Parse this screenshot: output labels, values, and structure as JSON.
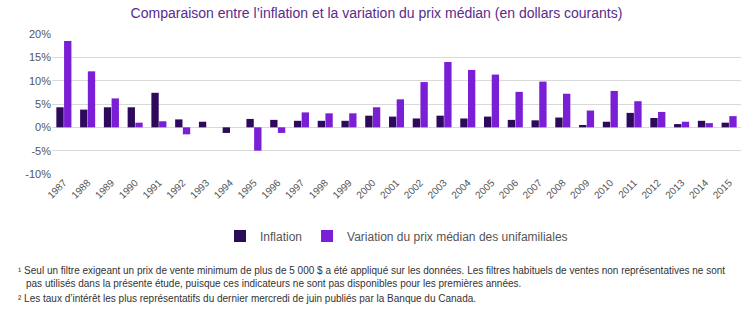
{
  "chart_data": {
    "type": "bar",
    "title": "Comparaison entre l’inflation et la variation du prix médian (en dollars courants)",
    "categories": [
      "1987",
      "1988",
      "1989",
      "1990",
      "1991",
      "1992",
      "1993",
      "1994",
      "1995",
      "1996",
      "1997",
      "1998",
      "1999",
      "2000",
      "2001",
      "2002",
      "2003",
      "2004",
      "2005",
      "2006",
      "2007",
      "2008",
      "2009",
      "2010",
      "2011",
      "2012",
      "2013",
      "2014",
      "2015"
    ],
    "series": [
      {
        "name": "Inflation",
        "color": "#2e0a5c",
        "values": [
          4.3,
          3.8,
          4.3,
          4.3,
          7.4,
          1.7,
          1.2,
          -1.2,
          1.8,
          1.6,
          1.4,
          1.4,
          1.4,
          2.5,
          2.3,
          1.9,
          2.5,
          1.9,
          2.3,
          1.6,
          1.5,
          2.1,
          0.5,
          1.2,
          3.1,
          2.0,
          0.7,
          1.4,
          1.0
        ]
      },
      {
        "name": "Variation du prix médian des unifamiliales",
        "color": "#7a1fd6",
        "values": [
          18.5,
          12.0,
          6.2,
          1.0,
          1.3,
          -1.5,
          0.0,
          0.0,
          -5.0,
          -1.2,
          3.2,
          3.0,
          3.0,
          4.3,
          6.0,
          9.7,
          14.0,
          12.3,
          11.3,
          7.6,
          9.8,
          7.2,
          3.6,
          7.8,
          5.6,
          3.3,
          1.2,
          0.9,
          2.4
        ]
      }
    ],
    "ylim": [
      -10,
      20
    ],
    "yticks": [
      {
        "value": -10,
        "label": "-10%"
      },
      {
        "value": -5,
        "label": "-5%"
      },
      {
        "value": 0,
        "label": "0%"
      },
      {
        "value": 5,
        "label": "5%"
      },
      {
        "value": 10,
        "label": "10%"
      },
      {
        "value": 15,
        "label": "15%"
      },
      {
        "value": 20,
        "label": "20%"
      }
    ],
    "grid": true,
    "legend": "bottom",
    "annotations": [
      "¹ Seul un filtre exigeant un prix de vente minimum de plus de 5 000 $ a été appliqué sur les données. Les filtres habituels de ventes non représentatives ne sont pas utilisés dans la présente étude, puisque ces indicateurs ne sont pas disponibles pour les premières années.",
      "² Les taux d’intérêt les plus représentatifs du dernier mercredi de juin publiés par la Banque du Canada."
    ]
  }
}
